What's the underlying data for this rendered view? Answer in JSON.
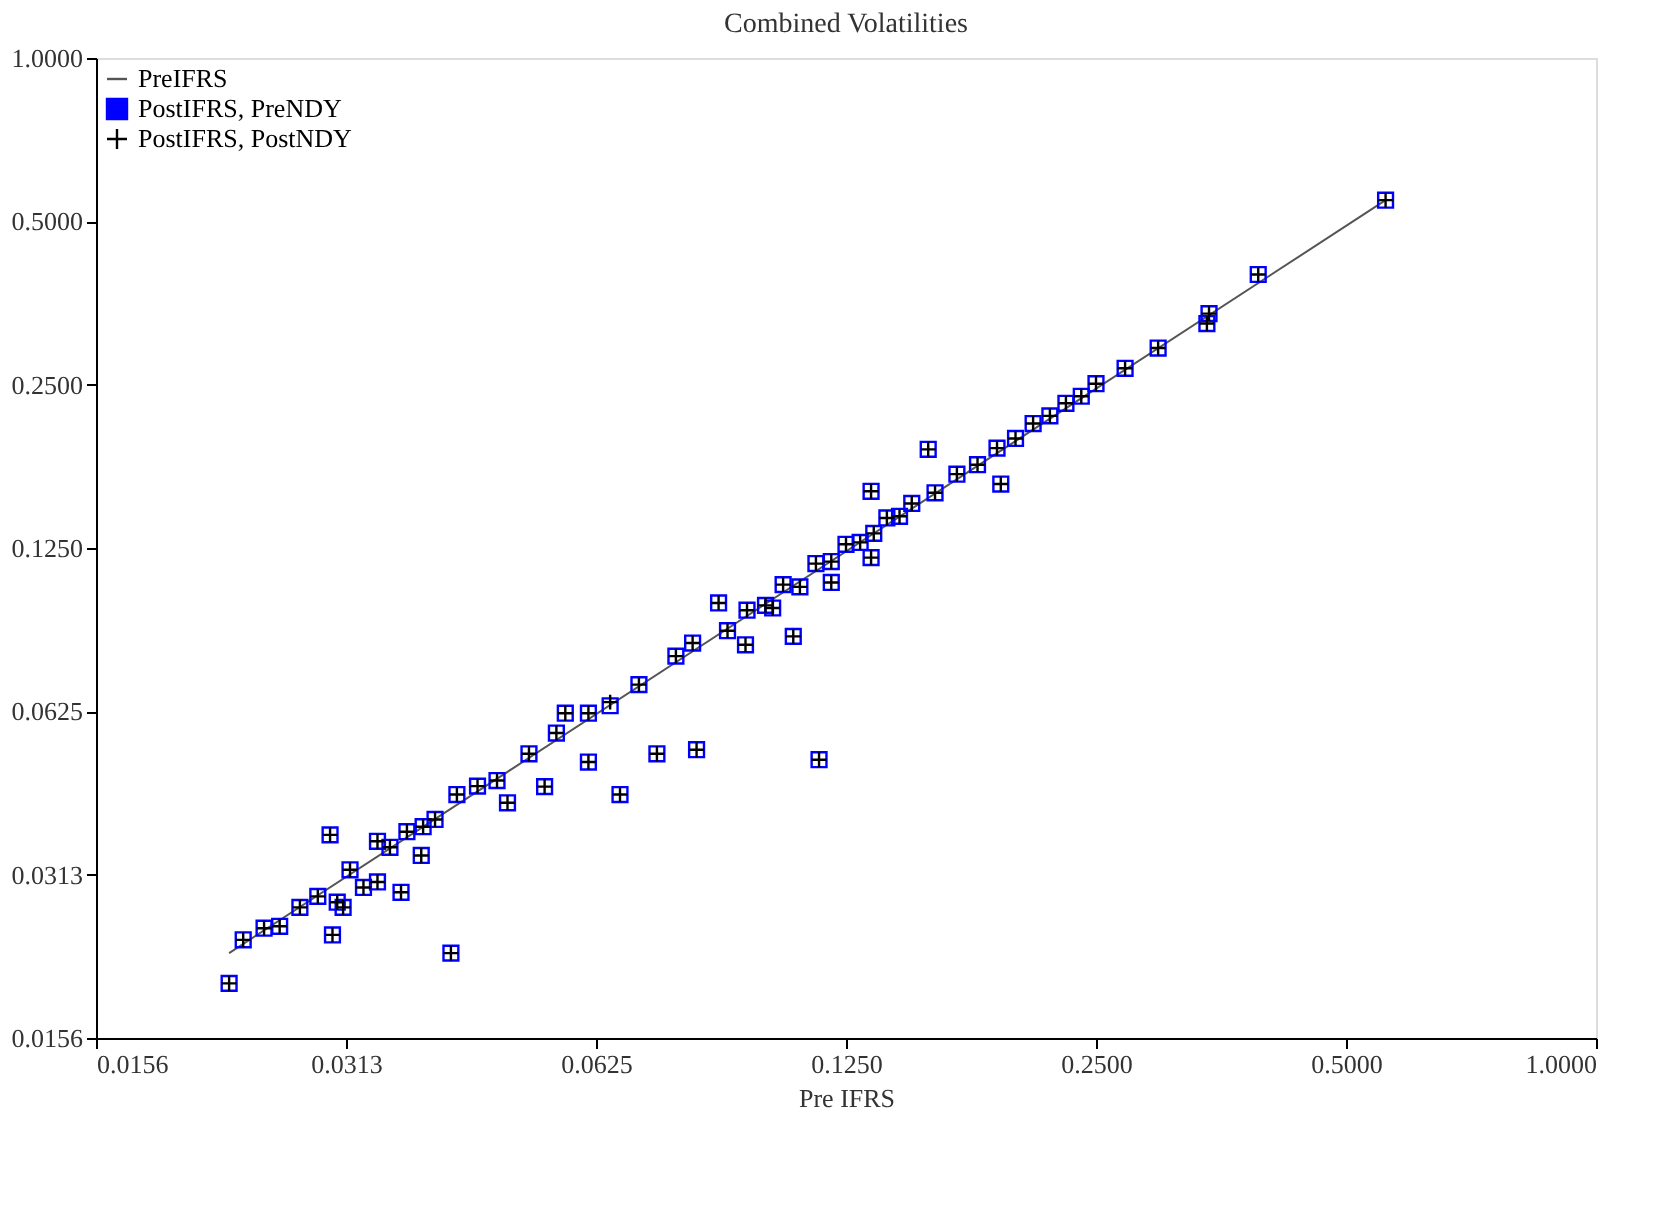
{
  "chart_data": {
    "type": "scatter",
    "title": "Combined Volatilities",
    "xlabel": "Pre IFRS",
    "log": "xy",
    "grid": false,
    "legend": "top left",
    "xlim": [
      0.015625,
      1.0
    ],
    "ylim": [
      0.015625,
      1.0
    ],
    "xticks": [
      {
        "value": 0.015625,
        "label": "0.0156"
      },
      {
        "value": 0.03125,
        "label": "0.0313"
      },
      {
        "value": 0.0625,
        "label": "0.0625"
      },
      {
        "value": 0.125,
        "label": "0.1250"
      },
      {
        "value": 0.25,
        "label": "0.2500"
      },
      {
        "value": 0.5,
        "label": "0.5000"
      },
      {
        "value": 1.0,
        "label": "1.0000"
      }
    ],
    "yticks": [
      {
        "value": 0.015625,
        "label": "0.0156"
      },
      {
        "value": 0.03125,
        "label": "0.0313"
      },
      {
        "value": 0.0625,
        "label": "0.0625"
      },
      {
        "value": 0.125,
        "label": "0.1250"
      },
      {
        "value": 0.25,
        "label": "0.2500"
      },
      {
        "value": 0.5,
        "label": "0.5000"
      },
      {
        "value": 1.0,
        "label": "1.0000"
      }
    ],
    "series": [
      {
        "name": "PreIFRS",
        "type": "line",
        "color": "#555555",
        "marker": "none",
        "line_style": "solid",
        "x": [
          0.0226,
          0.558
        ],
        "values": [
          0.0224,
          0.547
        ]
      },
      {
        "name": "PostIFRS, PreNDY",
        "color": "#0000ff",
        "marker": "square",
        "x": [
          0.0226,
          0.0418,
          0.0299,
          0.0301,
          0.0364,
          0.0385,
          0.0668,
          0.074,
          0.0826,
          0.0489,
          0.0542,
          0.0612,
          0.0574,
          0.108,
          0.116,
          0.157,
          0.134,
          0.192,
          0.558,
          0.392,
          0.342,
          0.34,
          0.297,
          0.271,
          0.0946,
          0.0878,
          0.0817,
          0.0704,
          0.0612,
          0.0519,
          0.0475,
          0.0425,
          0.0387,
          0.0353,
          0.0341,
          0.0328,
          0.0316,
          0.0305,
          0.0289,
          0.0275,
          0.026,
          0.0249,
          0.0341,
          0.031,
          0.1,
          0.105,
          0.11,
          0.115,
          0.12,
          0.125,
          0.13,
          0.135,
          0.14,
          0.145,
          0.15,
          0.16,
          0.17,
          0.18,
          0.19,
          0.2,
          0.21,
          0.22,
          0.23,
          0.24,
          0.25,
          0.09,
          0.095,
          0.078,
          0.065,
          0.056,
          0.045,
          0.04,
          0.037,
          0.0235,
          0.134,
          0.12,
          0.102
        ],
        "values": [
          0.0197,
          0.0224,
          0.037,
          0.0242,
          0.029,
          0.0339,
          0.0439,
          0.0522,
          0.0531,
          0.0424,
          0.0454,
          0.0504,
          0.062,
          0.0859,
          0.0509,
          0.19,
          0.159,
          0.164,
          0.547,
          0.399,
          0.338,
          0.324,
          0.292,
          0.268,
          0.0829,
          0.099,
          0.0835,
          0.07,
          0.062,
          0.0522,
          0.0466,
          0.0439,
          0.0383,
          0.0351,
          0.0303,
          0.0296,
          0.0319,
          0.0278,
          0.0285,
          0.0272,
          0.0251,
          0.0249,
          0.036,
          0.0272,
          0.098,
          0.107,
          0.106,
          0.117,
          0.118,
          0.127,
          0.128,
          0.133,
          0.142,
          0.143,
          0.151,
          0.158,
          0.171,
          0.178,
          0.191,
          0.199,
          0.212,
          0.219,
          0.231,
          0.238,
          0.251,
          0.088,
          0.096,
          0.079,
          0.064,
          0.057,
          0.0455,
          0.0395,
          0.0375,
          0.0237,
          0.12,
          0.108,
          0.0969
        ]
      },
      {
        "name": "PostIFRS, PostNDY",
        "color": "#000000",
        "marker": "cross",
        "x": [
          0.0226,
          0.0418,
          0.0299,
          0.0301,
          0.0364,
          0.0385,
          0.0668,
          0.074,
          0.0826,
          0.0489,
          0.0542,
          0.0612,
          0.0574,
          0.108,
          0.116,
          0.157,
          0.134,
          0.192,
          0.558,
          0.392,
          0.342,
          0.34,
          0.297,
          0.271,
          0.0946,
          0.0878,
          0.0817,
          0.0704,
          0.0612,
          0.0519,
          0.0475,
          0.0425,
          0.0387,
          0.0353,
          0.0341,
          0.0328,
          0.0316,
          0.0305,
          0.0289,
          0.0275,
          0.026,
          0.0249,
          0.0341,
          0.031,
          0.1,
          0.105,
          0.11,
          0.115,
          0.12,
          0.125,
          0.13,
          0.135,
          0.14,
          0.145,
          0.15,
          0.16,
          0.17,
          0.18,
          0.19,
          0.2,
          0.21,
          0.22,
          0.23,
          0.24,
          0.25,
          0.09,
          0.095,
          0.078,
          0.065,
          0.056,
          0.045,
          0.04,
          0.037,
          0.0235,
          0.134,
          0.12,
          0.102
        ],
        "values": [
          0.0197,
          0.0224,
          0.037,
          0.0242,
          0.029,
          0.0339,
          0.0439,
          0.0522,
          0.0531,
          0.0424,
          0.0454,
          0.0504,
          0.062,
          0.0859,
          0.0509,
          0.19,
          0.159,
          0.164,
          0.547,
          0.399,
          0.338,
          0.324,
          0.292,
          0.268,
          0.0829,
          0.099,
          0.0835,
          0.07,
          0.062,
          0.0522,
          0.0466,
          0.0439,
          0.0383,
          0.0351,
          0.0303,
          0.0296,
          0.0319,
          0.0278,
          0.0285,
          0.0272,
          0.0251,
          0.0249,
          0.036,
          0.0272,
          0.098,
          0.107,
          0.106,
          0.117,
          0.118,
          0.127,
          0.128,
          0.133,
          0.142,
          0.143,
          0.151,
          0.158,
          0.171,
          0.178,
          0.191,
          0.199,
          0.212,
          0.219,
          0.231,
          0.238,
          0.251,
          0.088,
          0.096,
          0.079,
          0.065,
          0.057,
          0.0455,
          0.0395,
          0.0375,
          0.0237,
          0.12,
          0.108,
          0.0969
        ]
      }
    ]
  }
}
